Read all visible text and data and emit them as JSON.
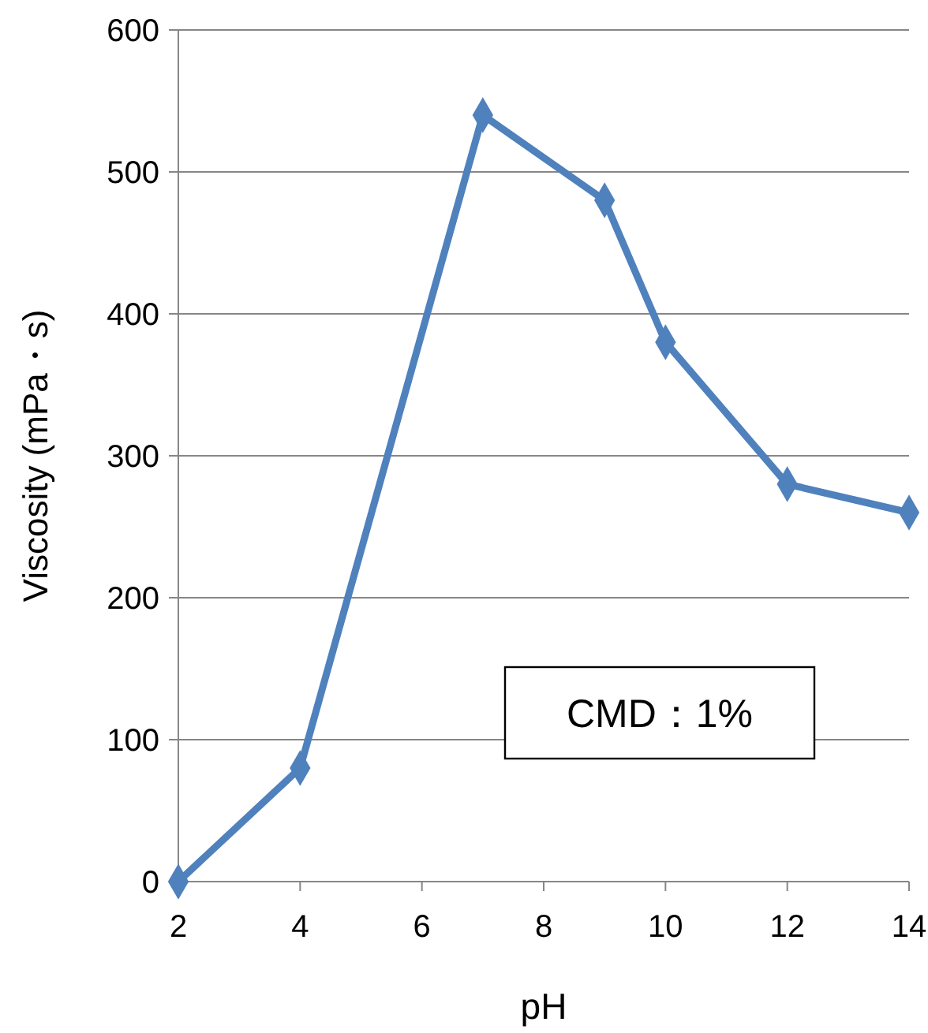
{
  "chart_data": {
    "type": "line",
    "xlabel": "pH",
    "ylabel": "Viscosity (mPa・s)",
    "x": [
      2,
      4,
      7,
      9,
      10,
      12,
      14
    ],
    "series": [
      {
        "color": "#4f81bd",
        "values": [
          0,
          80,
          540,
          480,
          380,
          280,
          260
        ]
      }
    ],
    "xlim": [
      2,
      14
    ],
    "xticks": [
      2,
      4,
      6,
      8,
      10,
      12,
      14
    ],
    "ylim": [
      0,
      600
    ],
    "yticks": [
      0,
      100,
      200,
      300,
      400,
      500,
      600
    ],
    "grid": "y",
    "marker": "diamond",
    "line_style": "solid",
    "annotations": [
      "CMD：1%"
    ]
  }
}
